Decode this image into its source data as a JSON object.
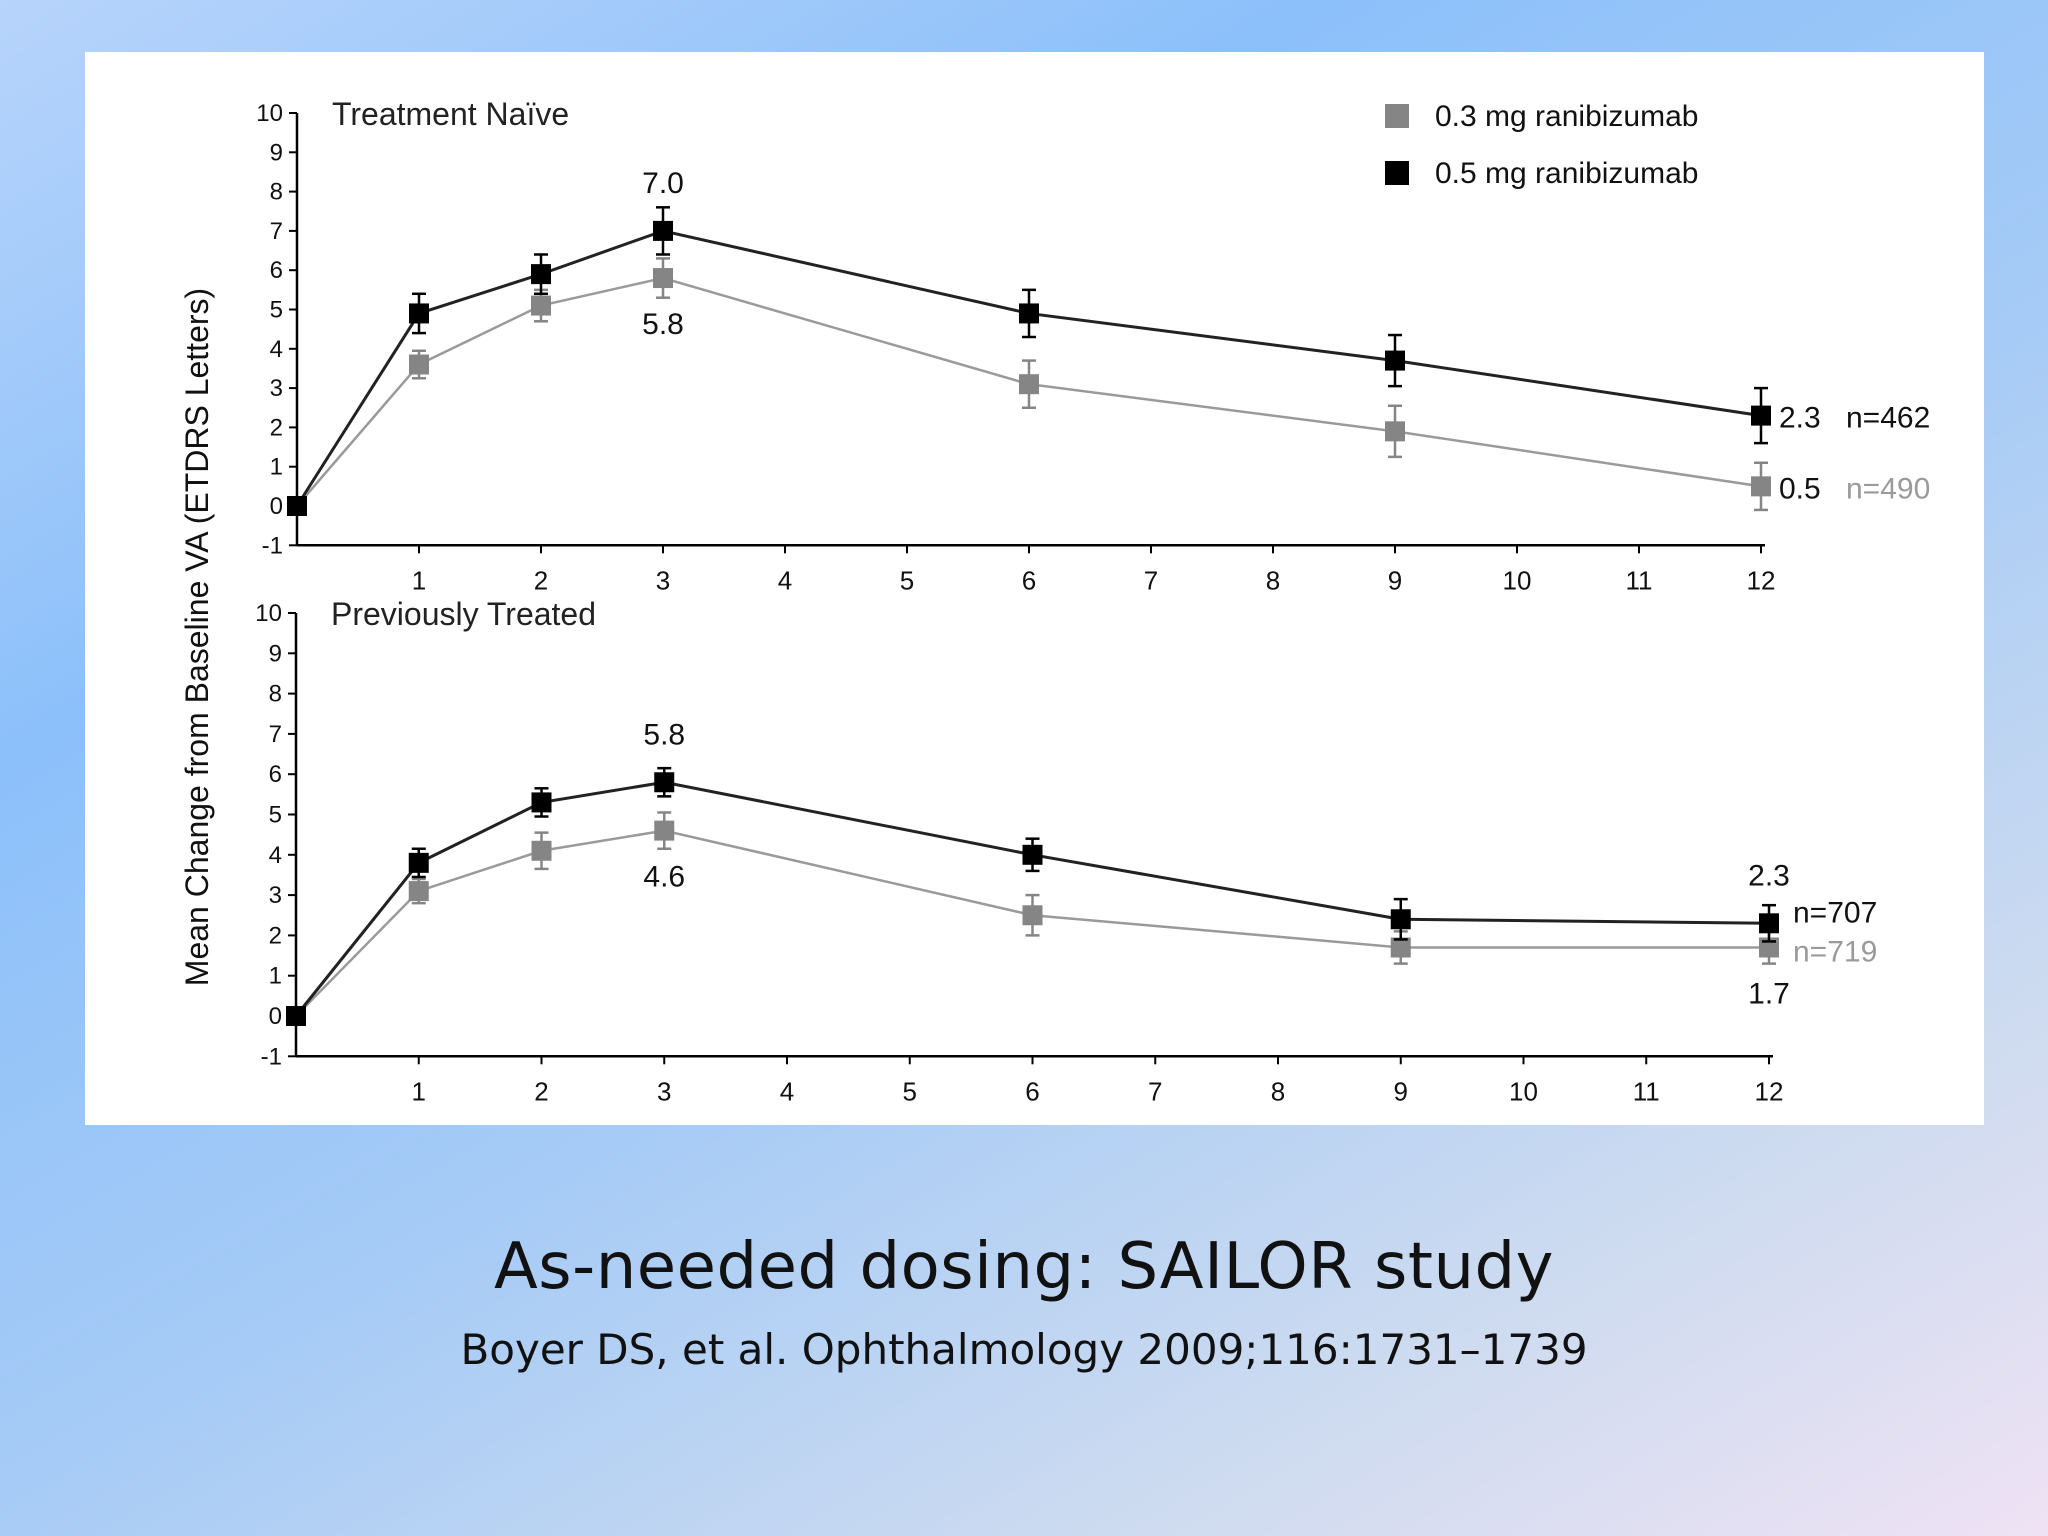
{
  "slide": {
    "title": "As-needed dosing: SAILOR study",
    "citation": "Boyer DS, et al. Ophthalmology 2009;116:1731–1739"
  },
  "colors": {
    "dose_03": "#858585",
    "dose_05": "#000000",
    "line_03": "#9a9a9a",
    "line_05": "#222222",
    "n_03_text": "#9a9a9a"
  },
  "chart_data": {
    "type": "line",
    "ylabel": "Mean Change from Baseline VA (ETDRS Letters)",
    "legend": {
      "placement": "top-right",
      "entries": [
        "0.3 mg ranibizumab",
        "0.5 mg ranibizumab"
      ]
    },
    "x_ticks": [
      1,
      2,
      3,
      4,
      5,
      6,
      7,
      8,
      9,
      10,
      11,
      12
    ],
    "xlim": [
      0,
      12
    ],
    "y_ticks": [
      -1,
      0,
      1,
      2,
      3,
      4,
      5,
      6,
      7,
      8,
      9,
      10
    ],
    "ylim": [
      -1,
      10
    ],
    "grid": false,
    "panels": [
      {
        "title": "Treatment Naïve",
        "x": [
          0,
          1,
          2,
          3,
          6,
          9,
          12
        ],
        "series": [
          {
            "name": "0.3 mg ranibizumab",
            "values": [
              0,
              3.6,
              5.1,
              5.8,
              3.1,
              1.9,
              0.5
            ],
            "error": [
              0,
              0.35,
              0.4,
              0.5,
              0.6,
              0.65,
              0.6
            ]
          },
          {
            "name": "0.5 mg ranibizumab",
            "values": [
              0,
              4.9,
              5.9,
              7.0,
              4.9,
              3.7,
              2.3
            ],
            "error": [
              0,
              0.5,
              0.5,
              0.6,
              0.6,
              0.65,
              0.7
            ]
          }
        ],
        "annotations": [
          {
            "text": "7.0",
            "series": "0.5 mg ranibizumab",
            "x": 3,
            "pos": "above"
          },
          {
            "text": "5.8",
            "series": "0.3 mg ranibizumab",
            "x": 3,
            "pos": "below"
          },
          {
            "text": "2.3",
            "series": "0.5 mg ranibizumab",
            "x": 12,
            "pos": "right"
          },
          {
            "text": "0.5",
            "series": "0.3 mg ranibizumab",
            "x": 12,
            "pos": "right"
          }
        ],
        "n_labels": [
          {
            "text": "n=462",
            "series": "0.5 mg ranibizumab"
          },
          {
            "text": "n=490",
            "series": "0.3 mg ranibizumab"
          }
        ]
      },
      {
        "title": "Previously Treated",
        "x": [
          0,
          1,
          2,
          3,
          6,
          9,
          12
        ],
        "series": [
          {
            "name": "0.3 mg ranibizumab",
            "values": [
              0,
              3.1,
              4.1,
              4.6,
              2.5,
              1.7,
              1.7
            ],
            "error": [
              0,
              0.3,
              0.45,
              0.45,
              0.5,
              0.4,
              0.4
            ]
          },
          {
            "name": "0.5 mg ranibizumab",
            "values": [
              0,
              3.8,
              5.3,
              5.8,
              4.0,
              2.4,
              2.3
            ],
            "error": [
              0,
              0.35,
              0.35,
              0.35,
              0.4,
              0.5,
              0.45
            ]
          }
        ],
        "annotations": [
          {
            "text": "5.8",
            "series": "0.5 mg ranibizumab",
            "x": 3,
            "pos": "above"
          },
          {
            "text": "4.6",
            "series": "0.3 mg ranibizumab",
            "x": 3,
            "pos": "below"
          },
          {
            "text": "2.3",
            "series": "0.5 mg ranibizumab",
            "x": 12,
            "pos": "above"
          },
          {
            "text": "1.7",
            "series": "0.3 mg ranibizumab",
            "x": 12,
            "pos": "below"
          }
        ],
        "n_labels": [
          {
            "text": "n=707",
            "series": "0.5 mg ranibizumab"
          },
          {
            "text": "n=719",
            "series": "0.3 mg ranibizumab"
          }
        ]
      }
    ]
  }
}
